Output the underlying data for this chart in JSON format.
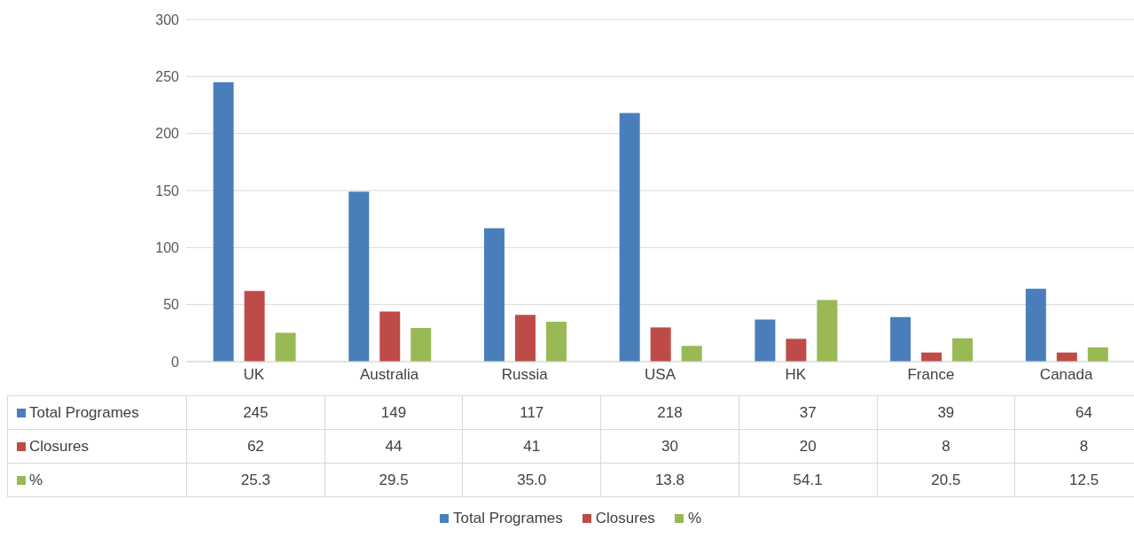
{
  "chart_data": {
    "type": "bar",
    "categories": [
      "UK",
      "Australia",
      "Russia",
      "USA",
      "HK",
      "France",
      "Canada"
    ],
    "series": [
      {
        "name": "Total Programes",
        "color": "#4a7ebb",
        "values": [
          245,
          149,
          117,
          218,
          37,
          39,
          64
        ],
        "value_labels": [
          "245",
          "149",
          "117",
          "218",
          "37",
          "39",
          "64"
        ]
      },
      {
        "name": "Closures",
        "color": "#be4b48",
        "values": [
          62,
          44,
          41,
          30,
          20,
          8,
          8
        ],
        "value_labels": [
          "62",
          "44",
          "41",
          "30",
          "20",
          "8",
          "8"
        ]
      },
      {
        "name": "%",
        "color": "#98b954",
        "values": [
          25.3,
          29.5,
          35.0,
          13.8,
          54.1,
          20.5,
          12.5
        ],
        "value_labels": [
          "25.3",
          "29.5",
          "35.0",
          "13.8",
          "54.1",
          "20.5",
          "12.5"
        ]
      }
    ],
    "ylim": [
      0,
      300
    ],
    "yticks": [
      0,
      50,
      100,
      150,
      200,
      250,
      300
    ],
    "grid": "y",
    "legend": "bottom"
  }
}
